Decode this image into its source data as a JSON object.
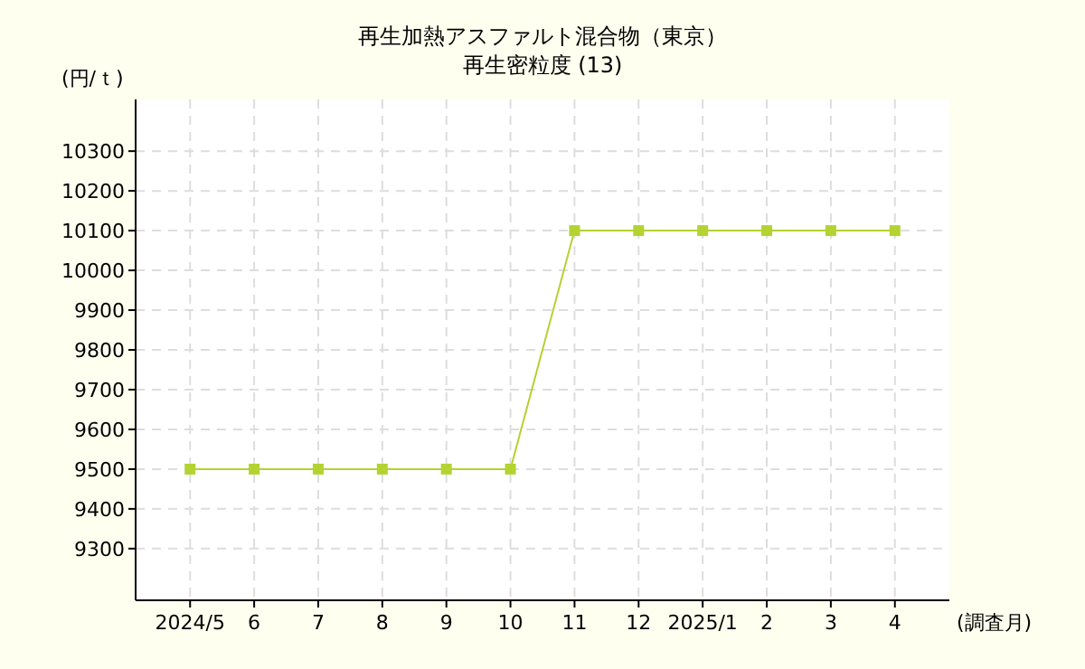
{
  "chart_data": {
    "type": "line",
    "title": "再生加熱アスファルト混合物（東京）",
    "subtitle": "再生密粒度 (13)",
    "ylabel": "(円/ｔ)",
    "xlabel": "(調査月)",
    "categories": [
      "2024/5",
      "6",
      "7",
      "8",
      "9",
      "10",
      "11",
      "12",
      "2025/1",
      "2",
      "3",
      "4"
    ],
    "series": [
      {
        "color": "#b4d232",
        "values": [
          9500,
          9500,
          9500,
          9500,
          9500,
          9500,
          10100,
          10100,
          10100,
          10100,
          10100,
          10100
        ]
      }
    ],
    "ylim": [
      9170,
      10430
    ],
    "yticks": [
      9300,
      9400,
      9500,
      9600,
      9700,
      9800,
      9900,
      10000,
      10100,
      10200,
      10300
    ],
    "grid": true,
    "marker": "square",
    "line_style": "solid"
  }
}
